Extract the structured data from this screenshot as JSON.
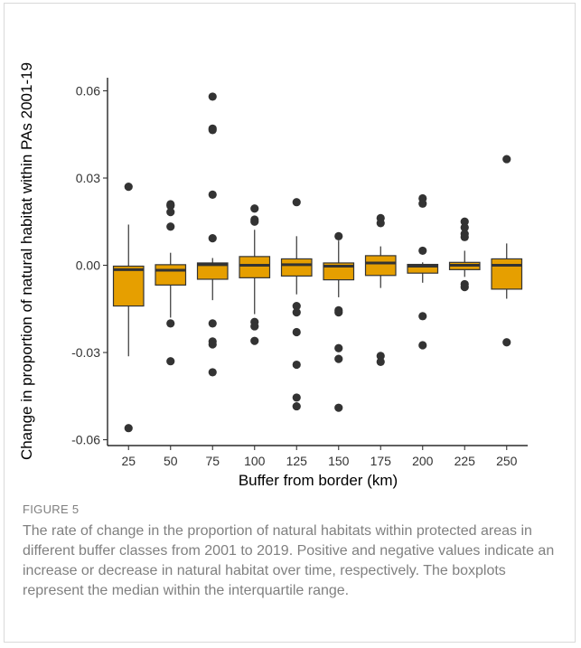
{
  "figure": {
    "label": "FIGURE 5",
    "caption": "The rate of change in the proportion of natural habitats within protected areas in different buffer classes from 2001 to 2019. Positive and negative values indicate an increase or decrease in natural habitat over time, respectively. The boxplots represent the median within the interquartile range."
  },
  "chart_data": {
    "type": "boxplot",
    "xlabel": "Buffer from border (km)",
    "ylabel": "Change in proportion of natural habitat within PAs 2001-19",
    "ylim": [
      -0.062,
      0.0645
    ],
    "yticks": [
      -0.06,
      -0.03,
      0.0,
      0.03,
      0.06
    ],
    "ytick_labels": [
      "-0.06",
      "-0.03",
      "0.00",
      "0.03",
      "0.06"
    ],
    "grid": false,
    "box_color": "#E69F00",
    "categories": [
      "25",
      "50",
      "75",
      "100",
      "125",
      "150",
      "175",
      "200",
      "225",
      "250"
    ],
    "boxes": [
      {
        "category": "25",
        "whisker_low": -0.0313,
        "q1": -0.014,
        "median": -0.0015,
        "q3": -0.0003,
        "whisker_high": 0.014,
        "outliers": [
          0.027,
          -0.056
        ]
      },
      {
        "category": "50",
        "whisker_low": -0.018,
        "q1": -0.0068,
        "median": -0.0017,
        "q3": 0.0002,
        "whisker_high": 0.0043,
        "outliers": [
          0.021,
          0.0205,
          0.0183,
          0.0133,
          -0.02,
          -0.033
        ]
      },
      {
        "category": "75",
        "whisker_low": -0.012,
        "q1": -0.0048,
        "median": 0.0002,
        "q3": 0.0008,
        "whisker_high": 0.0025,
        "outliers": [
          0.058,
          0.047,
          0.0465,
          0.0243,
          0.0093,
          -0.02,
          -0.0262,
          -0.0272,
          -0.0368
        ]
      },
      {
        "category": "100",
        "whisker_low": -0.0168,
        "q1": -0.0043,
        "median": 0.0,
        "q3": 0.003,
        "whisker_high": 0.0122,
        "outliers": [
          0.0195,
          0.0157,
          0.015,
          -0.0195,
          -0.021,
          -0.026
        ]
      },
      {
        "category": "125",
        "whisker_low": -0.01,
        "q1": -0.0037,
        "median": 0.0002,
        "q3": 0.0022,
        "whisker_high": 0.01,
        "outliers": [
          0.0217,
          -0.014,
          -0.0162,
          -0.023,
          -0.0342,
          -0.0455,
          -0.0485
        ]
      },
      {
        "category": "150",
        "whisker_low": -0.011,
        "q1": -0.005,
        "median": -0.0003,
        "q3": 0.0008,
        "whisker_high": 0.0085,
        "outliers": [
          0.01,
          -0.0155,
          -0.0162,
          -0.0285,
          -0.0322,
          -0.049
        ]
      },
      {
        "category": "175",
        "whisker_low": -0.0078,
        "q1": -0.0035,
        "median": 0.0008,
        "q3": 0.0033,
        "whisker_high": 0.0065,
        "outliers": [
          0.0162,
          0.0145,
          -0.0312,
          -0.0332
        ]
      },
      {
        "category": "200",
        "whisker_low": -0.006,
        "q1": -0.0027,
        "median": -0.0003,
        "q3": 0.0003,
        "whisker_high": 0.001,
        "outliers": [
          0.023,
          0.0212,
          0.005,
          -0.0175,
          -0.0275
        ]
      },
      {
        "category": "225",
        "whisker_low": -0.004,
        "q1": -0.0015,
        "median": 0.0,
        "q3": 0.001,
        "whisker_high": 0.005,
        "outliers": [
          0.015,
          0.013,
          0.0108,
          0.0097,
          -0.0065,
          -0.0075
        ]
      },
      {
        "category": "250",
        "whisker_low": -0.0115,
        "q1": -0.0082,
        "median": 0.0,
        "q3": 0.0022,
        "whisker_high": 0.0075,
        "outliers": [
          0.0365,
          -0.0265
        ]
      }
    ]
  }
}
